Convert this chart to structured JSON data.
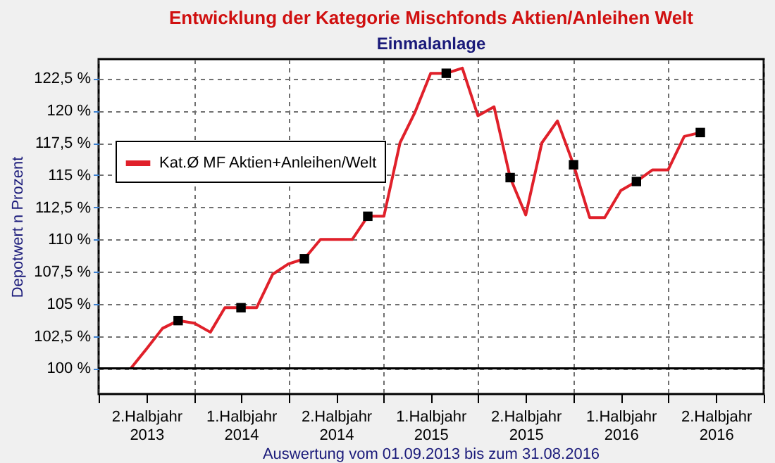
{
  "chart_data": {
    "type": "line",
    "title": "Entwicklung der Kategorie Mischfonds Aktien/Anleihen Welt",
    "subtitle": "Einmalanlage",
    "ylabel": "Depotwert n Prozent",
    "annotations": [
      "Auswertung vom 01.09.2013 bis zum 31.08.2016"
    ],
    "x": [
      "2013-09-01",
      "2013-10-01",
      "2013-11-01",
      "2013-12-01",
      "2014-01-01",
      "2014-02-01",
      "2014-03-01",
      "2014-04-01",
      "2014-05-01",
      "2014-06-01",
      "2014-07-01",
      "2014-08-01",
      "2014-09-01",
      "2014-10-01",
      "2014-11-01",
      "2014-12-01",
      "2015-01-01",
      "2015-02-01",
      "2015-03-01",
      "2015-04-01",
      "2015-05-01",
      "2015-06-01",
      "2015-07-01",
      "2015-08-01",
      "2015-09-01",
      "2015-10-01",
      "2015-11-01",
      "2015-12-01",
      "2016-01-01",
      "2016-02-01",
      "2016-03-01",
      "2016-04-01",
      "2016-05-01",
      "2016-06-01",
      "2016-07-01",
      "2016-08-01",
      "2016-09-01"
    ],
    "series": [
      {
        "name": "Kat.Ø MF Aktien+Anleihen/Welt",
        "color": "#e0202a",
        "marker": "none",
        "values": [
          100.0,
          101.5,
          103.1,
          103.7,
          103.5,
          102.8,
          104.7,
          104.7,
          104.7,
          107.3,
          108.1,
          108.5,
          110.0,
          110.0,
          110.0,
          111.8,
          111.8,
          117.5,
          119.8,
          122.9,
          122.9,
          123.3,
          119.6,
          120.3,
          114.8,
          111.9,
          117.5,
          119.2,
          115.8,
          111.7,
          111.7,
          113.8,
          114.5,
          115.4,
          115.4,
          118.0,
          118.3
        ]
      },
      {
        "type": "scatter",
        "color": "#000000",
        "marker": "square",
        "x": [
          "2013-12-01",
          "2014-04-01",
          "2014-08-01",
          "2014-12-01",
          "2015-05-01",
          "2015-09-01",
          "2016-01-01",
          "2016-05-01",
          "2016-09-01"
        ],
        "values": [
          103.7,
          104.7,
          108.5,
          111.8,
          122.9,
          114.8,
          115.8,
          114.5,
          118.3
        ]
      }
    ],
    "xlim": [
      "2013-07-01",
      "2017-01-01"
    ],
    "xticks": [
      {
        "value": "2013-07-01",
        "label": null
      },
      {
        "value": "2013-10-01",
        "label": "2.Halbjahr\n2013"
      },
      {
        "value": "2014-01-01",
        "label": null
      },
      {
        "value": "2014-04-01",
        "label": "1.Halbjahr\n2014"
      },
      {
        "value": "2014-07-01",
        "label": null
      },
      {
        "value": "2014-10-01",
        "label": "2.Halbjahr\n2014"
      },
      {
        "value": "2015-01-01",
        "label": null
      },
      {
        "value": "2015-04-01",
        "label": "1.Halbjahr\n2015"
      },
      {
        "value": "2015-07-01",
        "label": null
      },
      {
        "value": "2015-10-01",
        "label": "2.Halbjahr\n2015"
      },
      {
        "value": "2016-01-01",
        "label": null
      },
      {
        "value": "2016-04-01",
        "label": "1.Halbjahr\n2016"
      },
      {
        "value": "2016-07-01",
        "label": null
      },
      {
        "value": "2016-10-01",
        "label": "2.Halbjahr\n2016"
      },
      {
        "value": "2017-01-01",
        "label": null
      }
    ],
    "ylim": [
      98,
      124
    ],
    "yticks": [
      {
        "value": 100,
        "label": "100 %"
      },
      {
        "value": 102.5,
        "label": "102,5 %"
      },
      {
        "value": 105,
        "label": "105 %"
      },
      {
        "value": 107.5,
        "label": "107,5 %"
      },
      {
        "value": 110,
        "label": "110 %"
      },
      {
        "value": 112.5,
        "label": "112,5 %"
      },
      {
        "value": 115,
        "label": "115 %"
      },
      {
        "value": 117.5,
        "label": "117,5 %"
      },
      {
        "value": 120,
        "label": "120 %"
      },
      {
        "value": 122.5,
        "label": "122,5 %"
      }
    ],
    "ref_lines": [
      {
        "axis": "y",
        "value": 100,
        "color": "#000000"
      }
    ],
    "grid": true,
    "legend": "top left",
    "line_style": "solid"
  }
}
